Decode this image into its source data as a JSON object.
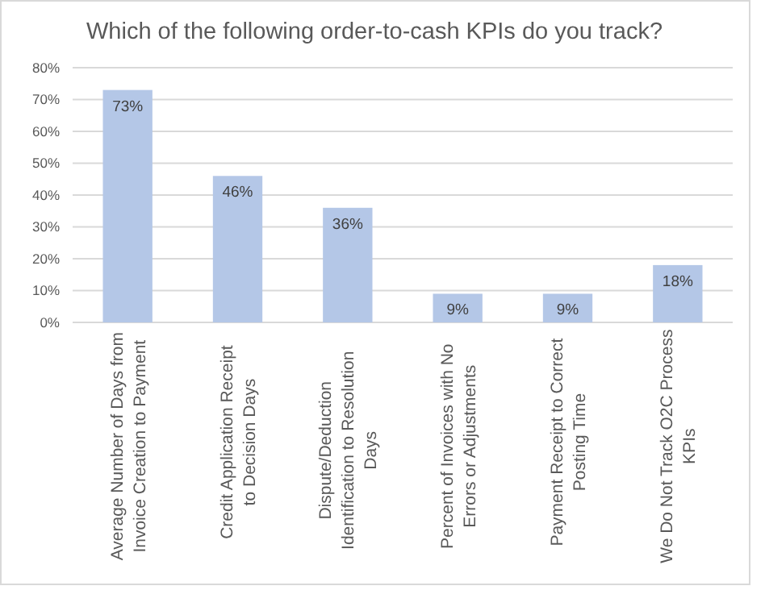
{
  "chart_data": {
    "type": "bar",
    "title": "Which of the following order-to-cash KPIs do you track?",
    "categories": [
      "Average Number of Days from Invoice Creation to Payment",
      "Credit Application Receipt to Decision Days",
      "Dispute/Deduction Identification to Resolution Days",
      "Percent of Invoices with No Errors or Adjustments",
      "Payment Receipt to Correct Posting Time",
      "We Do Not Track O2C Process KPIs"
    ],
    "values": [
      73,
      46,
      36,
      9,
      9,
      18
    ],
    "value_labels": [
      "73%",
      "46%",
      "36%",
      "9%",
      "9%",
      "18%"
    ],
    "color": "#b4c7e7",
    "ylim": [
      0,
      80
    ],
    "yticks": [
      {
        "value": 0,
        "label": "0%"
      },
      {
        "value": 10,
        "label": "10%"
      },
      {
        "value": 20,
        "label": "20%"
      },
      {
        "value": 30,
        "label": "30%"
      },
      {
        "value": 40,
        "label": "40%"
      },
      {
        "value": 50,
        "label": "50%"
      },
      {
        "value": 60,
        "label": "60%"
      },
      {
        "value": 70,
        "label": "70%"
      },
      {
        "value": 80,
        "label": "80%"
      }
    ],
    "grid": "y"
  }
}
